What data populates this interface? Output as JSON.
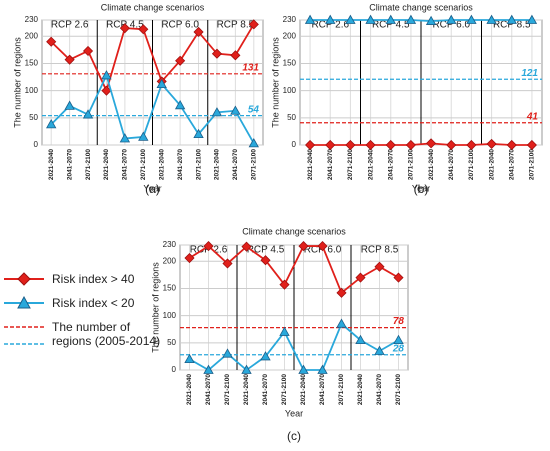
{
  "chart_data": [
    {
      "type": "line",
      "title": "Climate change scenarios",
      "panel": "(a)",
      "xlabel": "Year",
      "ylabel": "The number of regions",
      "groups": [
        "RCP 2.6",
        "RCP 4.5",
        "RCP 6.0",
        "RCP 8.5"
      ],
      "categories": [
        "2021-2040",
        "2041-2070",
        "2071-2100",
        "2021-2040",
        "2041-2070",
        "2071-2100",
        "2021-2040",
        "2041-2070",
        "2071-2100",
        "2021-2040",
        "2041-2070",
        "2071-2100"
      ],
      "series": [
        {
          "color": "#e0201b",
          "marker": "diamond",
          "values": [
            190,
            157,
            173,
            100,
            215,
            213,
            117,
            155,
            208,
            168,
            165,
            222
          ]
        },
        {
          "color": "#29a8db",
          "marker": "triangle",
          "values": [
            38,
            72,
            56,
            128,
            12,
            15,
            112,
            73,
            20,
            60,
            63,
            3
          ]
        }
      ],
      "reference_lines": [
        {
          "value": 131,
          "color": "#e0201b"
        },
        {
          "value": 54,
          "color": "#29a8db"
        }
      ],
      "ylim": [
        0,
        230
      ],
      "yticks": [
        0,
        50,
        100,
        150,
        200,
        230
      ],
      "grid": true
    },
    {
      "type": "line",
      "title": "Climate change scenarios",
      "panel": "(b)",
      "xlabel": "Year",
      "ylabel": "The number of regions",
      "groups": [
        "RCP 2.6",
        "RCP 4.5",
        "RCP 6.0",
        "RCP 8.5"
      ],
      "categories": [
        "2021-2040",
        "2041-2070",
        "2071-2100",
        "2021-2040",
        "2041-2070",
        "2071-2100",
        "2021-2040",
        "2041-2070",
        "2071-2100",
        "2021-2040",
        "2041-2070",
        "2071-2100"
      ],
      "series": [
        {
          "color": "#e0201b",
          "marker": "diamond",
          "values": [
            0,
            0,
            0,
            0,
            0,
            0,
            3,
            0,
            0,
            2,
            0,
            0
          ]
        },
        {
          "color": "#29a8db",
          "marker": "triangle",
          "values": [
            230,
            230,
            230,
            230,
            230,
            230,
            228,
            230,
            230,
            230,
            230,
            230
          ]
        }
      ],
      "reference_lines": [
        {
          "value": 41,
          "color": "#e0201b"
        },
        {
          "value": 121,
          "color": "#29a8db"
        }
      ],
      "ylim": [
        0,
        230
      ],
      "yticks": [
        0,
        50,
        100,
        150,
        200,
        230
      ],
      "grid": true
    },
    {
      "type": "line",
      "title": "Climate change scenarios",
      "panel": "(c)",
      "xlabel": "Year",
      "ylabel": "The number of regions",
      "groups": [
        "RCP 2.6",
        "RCP 4.5",
        "RCP 6.0",
        "RCP 8.5"
      ],
      "categories": [
        "2021-2040",
        "2041-2070",
        "2071-2100",
        "2021-2040",
        "2041-2070",
        "2071-2100",
        "2021-2040",
        "2041-2070",
        "2071-2100",
        "2021-2040",
        "2041-2070",
        "2071-2100"
      ],
      "series": [
        {
          "name": "Risk index > 40",
          "color": "#e0201b",
          "marker": "diamond",
          "values": [
            206,
            228,
            196,
            227,
            202,
            157,
            228,
            228,
            142,
            170,
            190,
            170
          ]
        },
        {
          "name": "Risk index < 20",
          "color": "#29a8db",
          "marker": "triangle",
          "values": [
            20,
            0,
            30,
            0,
            25,
            70,
            0,
            0,
            85,
            55,
            35,
            55
          ]
        }
      ],
      "reference_lines": [
        {
          "value": 78,
          "color": "#e0201b"
        },
        {
          "value": 28,
          "color": "#29a8db"
        }
      ],
      "reference_legend": "The number of regions (2005-2014)",
      "ylim": [
        0,
        230
      ],
      "yticks": [
        0,
        50,
        100,
        150,
        200,
        230
      ],
      "grid": true
    }
  ]
}
